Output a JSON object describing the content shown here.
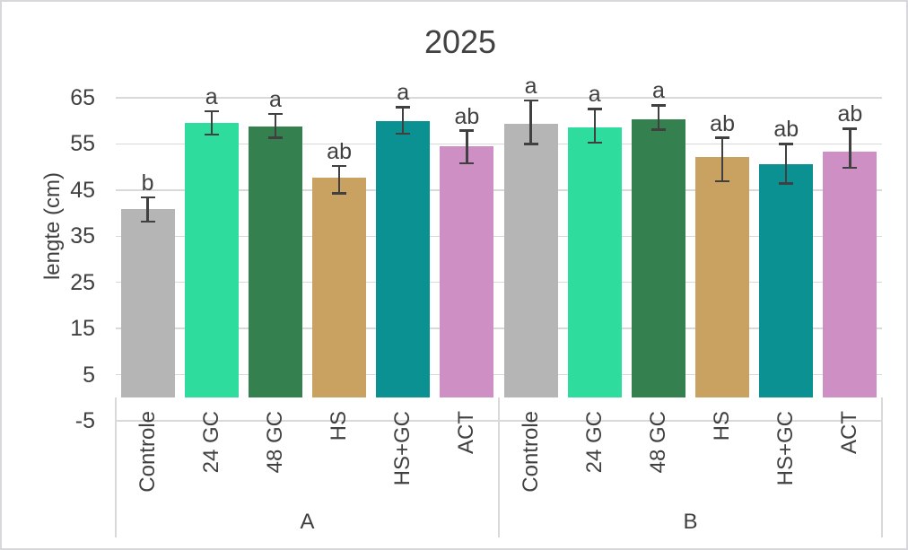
{
  "chart_data": {
    "type": "bar",
    "title": "2025",
    "xlabel": "",
    "ylabel": "lengte (cm)",
    "ylim": [
      -5,
      65
    ],
    "yticks": [
      65,
      55,
      45,
      35,
      25,
      15,
      5,
      -5
    ],
    "grid": true,
    "legend": false,
    "bar_base": 0,
    "categories": [
      "Controle",
      "24 GC",
      "48 GC",
      "HS",
      "HS+GC",
      "ACT"
    ],
    "category_colors": {
      "Controle": "#B5B5B5",
      "24 GC": "#2EDD9D",
      "48 GC": "#35804F",
      "HS": "#C9A262",
      "HS+GC": "#0B9191",
      "ACT": "#CE8FC5"
    },
    "groups": [
      {
        "label": "A",
        "bars": [
          {
            "category": "Controle",
            "value": 40.8,
            "error_upper": 43.4,
            "error_lower": 38.2,
            "letter": "b"
          },
          {
            "category": "24 GC",
            "value": 59.6,
            "error_upper": 62.1,
            "error_lower": 57.0,
            "letter": "a"
          },
          {
            "category": "48 GC",
            "value": 58.7,
            "error_upper": 61.5,
            "error_lower": 56.3,
            "letter": "a"
          },
          {
            "category": "HS",
            "value": 47.6,
            "error_upper": 50.2,
            "error_lower": 44.3,
            "letter": "ab"
          },
          {
            "category": "HS+GC",
            "value": 60.0,
            "error_upper": 63.0,
            "error_lower": 57.2,
            "letter": "a"
          },
          {
            "category": "ACT",
            "value": 54.5,
            "error_upper": 57.9,
            "error_lower": 50.8,
            "letter": "ab"
          }
        ]
      },
      {
        "label": "B",
        "bars": [
          {
            "category": "Controle",
            "value": 59.4,
            "error_upper": 64.4,
            "error_lower": 55.0,
            "letter": "a"
          },
          {
            "category": "24 GC",
            "value": 58.6,
            "error_upper": 62.6,
            "error_lower": 55.3,
            "letter": "a"
          },
          {
            "category": "48 GC",
            "value": 60.4,
            "error_upper": 63.4,
            "error_lower": 58.1,
            "letter": "a"
          },
          {
            "category": "HS",
            "value": 52.1,
            "error_upper": 56.3,
            "error_lower": 46.9,
            "letter": "ab"
          },
          {
            "category": "HS+GC",
            "value": 50.6,
            "error_upper": 55.0,
            "error_lower": 46.4,
            "letter": "ab"
          },
          {
            "category": "ACT",
            "value": 53.3,
            "error_upper": 58.3,
            "error_lower": 49.8,
            "letter": "ab"
          }
        ]
      }
    ]
  },
  "styles": {
    "grid_color": "#D9D9D9",
    "axis_line_color": "#D9D9D9",
    "text_color": "#404040",
    "error_bar_color": "#404040",
    "title_color": "#414141",
    "background": "#FFFFFF",
    "border_color": "#D7D7DC"
  }
}
